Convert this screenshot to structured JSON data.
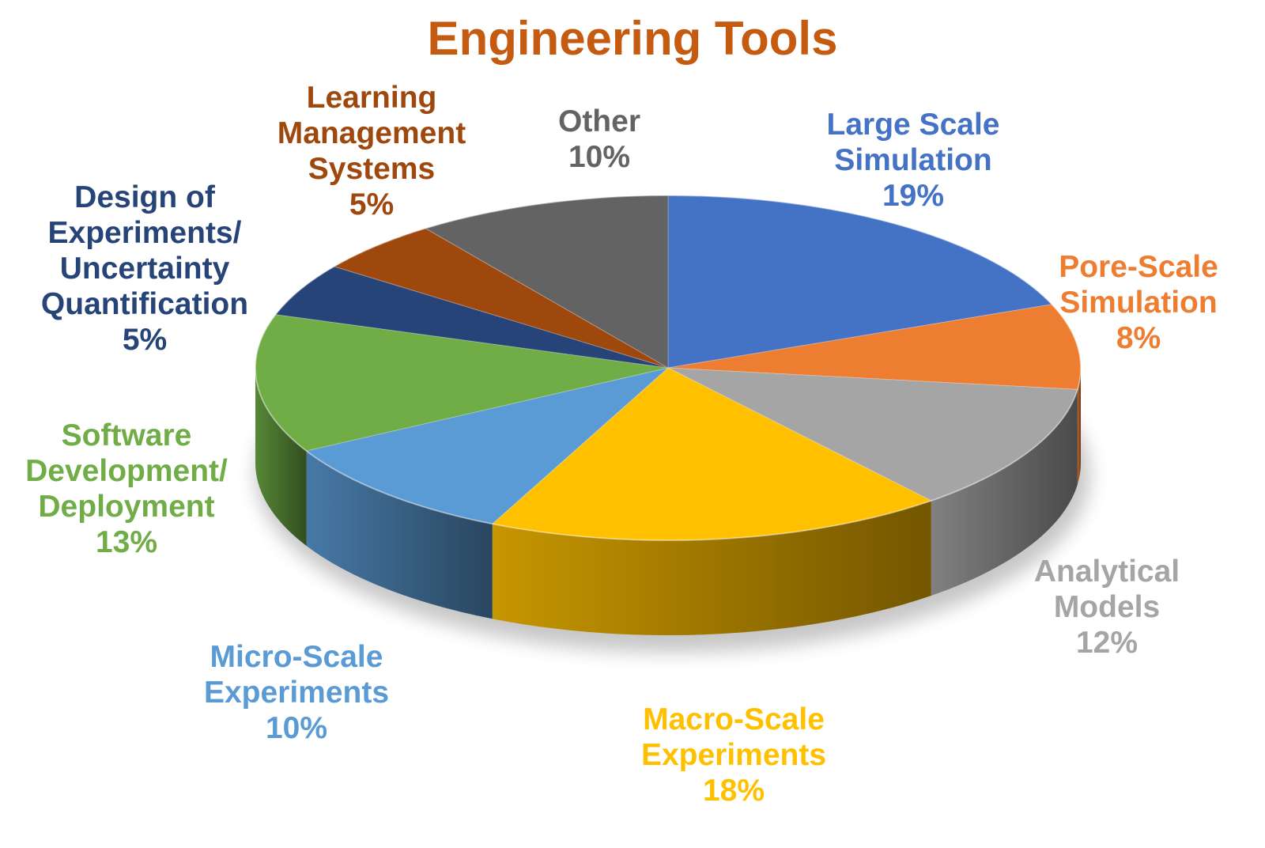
{
  "chart_data": {
    "type": "pie",
    "title": "Engineering Tools",
    "slices": [
      {
        "label_lines": [
          "Large Scale",
          "Simulation"
        ],
        "value": 19,
        "value_label": "19%",
        "color": "#4472C4",
        "label_color": "#4472C4"
      },
      {
        "label_lines": [
          "Pore-Scale",
          "Simulation"
        ],
        "value": 8,
        "value_label": "8%",
        "color": "#ED7D31",
        "label_color": "#ED7D31"
      },
      {
        "label_lines": [
          "Analytical",
          "Models"
        ],
        "value": 12,
        "value_label": "12%",
        "color": "#A5A5A5",
        "label_color": "#A5A5A5"
      },
      {
        "label_lines": [
          "Macro-Scale",
          "Experiments"
        ],
        "value": 18,
        "value_label": "18%",
        "color": "#FFC000",
        "label_color": "#FFC000"
      },
      {
        "label_lines": [
          "Micro-Scale",
          "Experiments"
        ],
        "value": 10,
        "value_label": "10%",
        "color": "#5B9BD5",
        "label_color": "#5B9BD5"
      },
      {
        "label_lines": [
          "Software",
          "Development/",
          "Deployment"
        ],
        "value": 13,
        "value_label": "13%",
        "color": "#70AD47",
        "label_color": "#70AD47"
      },
      {
        "label_lines": [
          "Design of",
          "Experiments/",
          "Uncertainty",
          "Quantification"
        ],
        "value": 5,
        "value_label": "5%",
        "color": "#264478",
        "label_color": "#264478"
      },
      {
        "label_lines": [
          "Learning",
          "Management",
          "Systems"
        ],
        "value": 5,
        "value_label": "5%",
        "color": "#9E480E",
        "label_color": "#9E480E"
      },
      {
        "label_lines": [
          "Other"
        ],
        "value": 10,
        "value_label": "10%",
        "color": "#636363",
        "label_color": "#636363"
      }
    ],
    "start_angle_deg": 0,
    "direction": "clockwise",
    "style": "3d-tilted",
    "legend": "none"
  }
}
